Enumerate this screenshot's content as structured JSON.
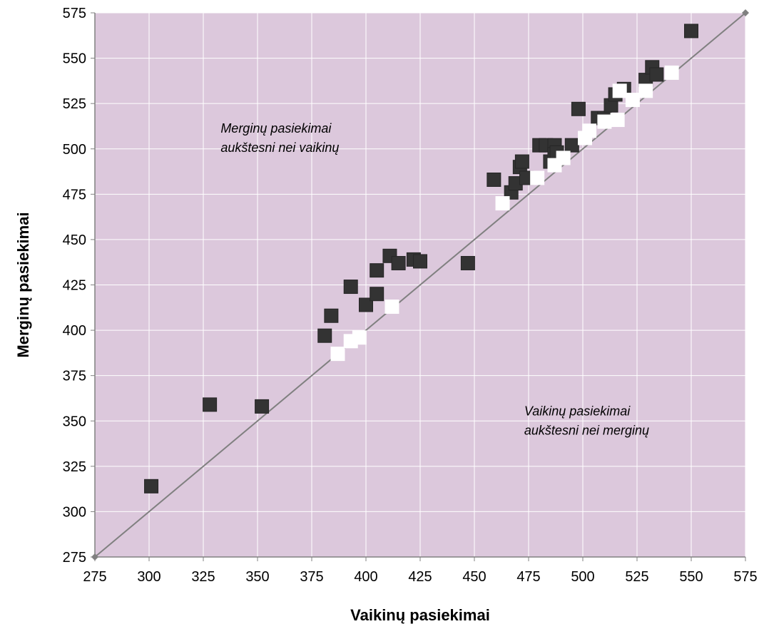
{
  "chart_data": {
    "type": "scatter",
    "title": "",
    "xlabel": "Vaikinų pasiekimai",
    "ylabel": "Merginų pasiekimai",
    "xlim": [
      275,
      575
    ],
    "ylim": [
      275,
      575
    ],
    "xticks": [
      "275",
      "300",
      "325",
      "350",
      "375",
      "400",
      "425",
      "450",
      "475",
      "500",
      "525",
      "550",
      "575"
    ],
    "yticks": [
      "275",
      "300",
      "325",
      "350",
      "375",
      "400",
      "425",
      "450",
      "475",
      "500",
      "525",
      "550",
      "575"
    ],
    "grid": true,
    "plot_background": "#dcc8dc",
    "grid_color": "#ffffff",
    "reference_line": {
      "x": [
        275,
        575
      ],
      "y": [
        275,
        575
      ],
      "color": "#808080"
    },
    "annotations": [
      {
        "lines": [
          "Merginų pasiekimai",
          "aukštesni nei vaikinų"
        ],
        "x": 333,
        "y": 509
      },
      {
        "lines": [
          "Vaikinų pasiekimai",
          "aukštesni nei merginų"
        ],
        "x": 473,
        "y": 353
      }
    ],
    "series": [
      {
        "marker": "square",
        "color": "#333333",
        "points": [
          [
            301,
            314
          ],
          [
            328,
            359
          ],
          [
            352,
            358
          ],
          [
            381,
            397
          ],
          [
            384,
            408
          ],
          [
            393,
            424
          ],
          [
            400,
            414
          ],
          [
            405,
            420
          ],
          [
            405,
            433
          ],
          [
            411,
            441
          ],
          [
            415,
            437
          ],
          [
            422,
            439
          ],
          [
            425,
            438
          ],
          [
            447,
            437
          ],
          [
            459,
            483
          ],
          [
            467,
            476
          ],
          [
            469,
            481
          ],
          [
            471,
            490
          ],
          [
            472,
            493
          ],
          [
            474,
            484
          ],
          [
            480,
            502
          ],
          [
            483,
            502
          ],
          [
            485,
            493
          ],
          [
            487,
            502
          ],
          [
            487,
            497
          ],
          [
            488,
            498
          ],
          [
            495,
            502
          ],
          [
            498,
            522
          ],
          [
            507,
            517
          ],
          [
            510,
            517
          ],
          [
            513,
            524
          ],
          [
            515,
            530
          ],
          [
            519,
            533
          ],
          [
            529,
            538
          ],
          [
            532,
            545
          ],
          [
            534,
            541
          ],
          [
            550,
            565
          ]
        ]
      },
      {
        "marker": "square",
        "color": "#ffffff",
        "points": [
          [
            387,
            387
          ],
          [
            393,
            394
          ],
          [
            397,
            396
          ],
          [
            412,
            413
          ],
          [
            463,
            470
          ],
          [
            479,
            484
          ],
          [
            487,
            491
          ],
          [
            491,
            495
          ],
          [
            501,
            506
          ],
          [
            503,
            510
          ],
          [
            510,
            515
          ],
          [
            516,
            516
          ],
          [
            517,
            532
          ],
          [
            523,
            527
          ],
          [
            529,
            532
          ],
          [
            541,
            542
          ]
        ]
      }
    ]
  }
}
